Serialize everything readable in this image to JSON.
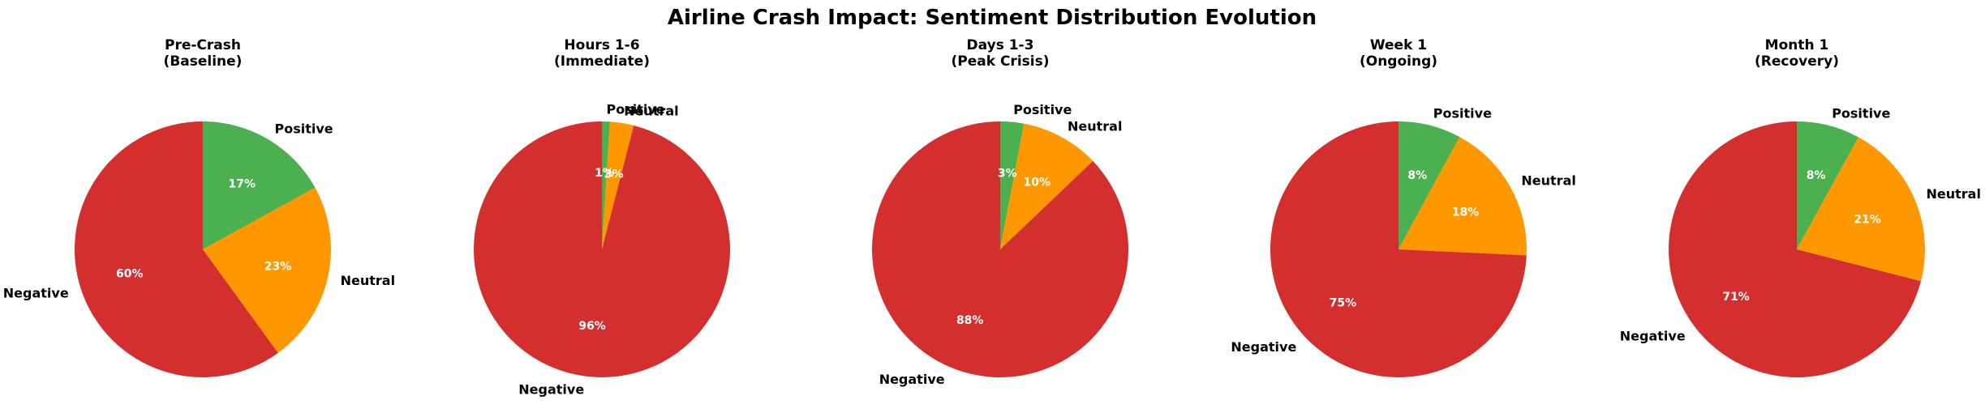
{
  "chart_data": {
    "type": "pie",
    "title": "Airline Crash Impact: Sentiment Distribution Evolution",
    "categories": [
      "Positive",
      "Neutral",
      "Negative"
    ],
    "colors": [
      "#4caf50",
      "#ff9800",
      "#d32f2f"
    ],
    "start_angle_deg": 90,
    "direction": "clockwise",
    "pies": [
      {
        "title_line1": "Pre-Crash",
        "title_line2": "(Baseline)",
        "values": [
          17,
          23,
          60
        ],
        "pct_labels": [
          "17%",
          "23%",
          "60%"
        ]
      },
      {
        "title_line1": "Hours 1-6",
        "title_line2": "(Immediate)",
        "values": [
          1,
          3,
          96
        ],
        "pct_labels": [
          "1%",
          "3%",
          "96%"
        ]
      },
      {
        "title_line1": "Days 1-3",
        "title_line2": "(Peak Crisis)",
        "values": [
          3,
          10,
          88
        ],
        "pct_labels": [
          "3%",
          "10%",
          "88%"
        ]
      },
      {
        "title_line1": "Week 1",
        "title_line2": "(Ongoing)",
        "values": [
          8,
          18,
          75
        ],
        "pct_labels": [
          "8%",
          "18%",
          "75%"
        ]
      },
      {
        "title_line1": "Month 1",
        "title_line2": "(Recovery)",
        "values": [
          8,
          21,
          71
        ],
        "pct_labels": [
          "8%",
          "21%",
          "71%"
        ]
      }
    ]
  }
}
